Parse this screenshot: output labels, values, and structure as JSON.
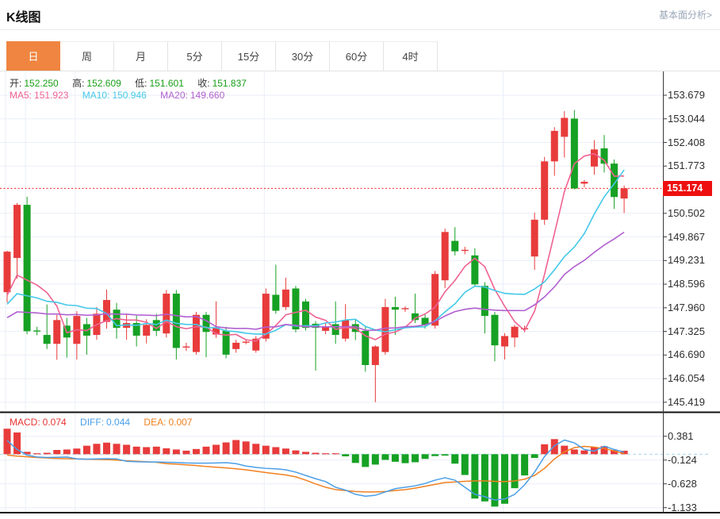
{
  "page": {
    "title": "K线图",
    "link_fundamental": "基本面分析>"
  },
  "tabs": {
    "selected_key": "day",
    "items": [
      {
        "key": "day",
        "label": "日"
      },
      {
        "key": "week",
        "label": "周"
      },
      {
        "key": "month",
        "label": "月"
      },
      {
        "key": "5min",
        "label": "5分"
      },
      {
        "key": "15min",
        "label": "15分"
      },
      {
        "key": "30min",
        "label": "30分"
      },
      {
        "key": "60min",
        "label": "60分"
      },
      {
        "key": "4hour",
        "label": "4时"
      }
    ]
  },
  "legend": {
    "open_label": "开:",
    "high_label": "高:",
    "low_label": "低:",
    "close_label": "收:",
    "ma5_label": "MA5:",
    "ma10_label": "MA10:",
    "ma20_label": "MA20:",
    "macd_label": "MACD:",
    "diff_label": "DIFF:",
    "dea_label": "DEA:"
  },
  "price_badge": "151.174",
  "colors": {
    "up": "#e83b3b",
    "down": "#16a124",
    "ma5": "#ef6292",
    "ma10": "#44c8e8",
    "ma20": "#b05fd0",
    "diff": "#4a9fe8",
    "dea": "#f08021",
    "value_green": "#18a018",
    "macd_value_red": "#e73434",
    "grid": "#eaeef7",
    "axis_line": "#3a3a3a",
    "current_line": "#f42020",
    "badge_bg": "#ee1010",
    "tab_active": "#ef8540",
    "link": "#9aa7b8",
    "zero_dash": "#a9d7f2",
    "separator": "#111111"
  },
  "chart_data": [
    {
      "type": "candlestick",
      "title": "K线图 日K",
      "legend_values": {
        "open": "152.250",
        "high": "152.609",
        "low": "151.601",
        "close": "151.837",
        "ma5": "151.923",
        "ma10": "150.946",
        "ma20": "149.660"
      },
      "y_axis": {
        "range": [
          145.419,
          153.679
        ],
        "current_price": 151.174,
        "ticks": [
          "153.679",
          "153.044",
          "152.408",
          "151.773",
          "150.502",
          "149.867",
          "149.231",
          "148.596",
          "147.960",
          "147.325",
          "146.690",
          "146.054",
          "145.419"
        ]
      },
      "ma_lines": [
        {
          "name": "MA5",
          "period": 5,
          "seed": 148.0
        },
        {
          "name": "MA10",
          "period": 10,
          "seed": 147.9
        },
        {
          "name": "MA20",
          "period": 20,
          "seed": 147.6
        }
      ],
      "vgrid_candle_indices": [
        0,
        2,
        7,
        26,
        50
      ],
      "candles_ohlc": [
        [
          148.38,
          149.5,
          148.1,
          149.47
        ],
        [
          149.3,
          150.78,
          148.74,
          150.73
        ],
        [
          150.73,
          150.95,
          147.25,
          147.33
        ],
        [
          147.35,
          147.45,
          147.22,
          147.33
        ],
        [
          147.23,
          148.05,
          146.85,
          146.99
        ],
        [
          146.99,
          147.77,
          146.56,
          147.63
        ],
        [
          147.48,
          147.69,
          146.62,
          147.16
        ],
        [
          146.99,
          147.87,
          146.57,
          147.74
        ],
        [
          147.52,
          147.69,
          146.7,
          147.21
        ],
        [
          147.23,
          147.98,
          147.1,
          147.8
        ],
        [
          147.58,
          148.45,
          147.4,
          148.17
        ],
        [
          147.91,
          148.09,
          147.13,
          147.42
        ],
        [
          147.42,
          147.8,
          147.1,
          147.55
        ],
        [
          147.55,
          147.75,
          146.92,
          147.21
        ],
        [
          147.21,
          147.65,
          147.0,
          147.5
        ],
        [
          147.63,
          147.8,
          147.2,
          147.34
        ],
        [
          147.27,
          148.44,
          147.16,
          148.34
        ],
        [
          148.34,
          148.44,
          146.57,
          146.88
        ],
        [
          146.9,
          147.02,
          146.8,
          146.92
        ],
        [
          146.77,
          147.85,
          146.7,
          147.77
        ],
        [
          147.77,
          147.85,
          146.63,
          147.31
        ],
        [
          147.24,
          148.13,
          147.15,
          147.42
        ],
        [
          147.34,
          147.45,
          146.6,
          146.7
        ],
        [
          146.85,
          147.1,
          146.75,
          147.02
        ],
        [
          147.03,
          147.1,
          146.98,
          147.05
        ],
        [
          146.81,
          147.2,
          146.75,
          147.13
        ],
        [
          147.13,
          148.48,
          147.05,
          148.34
        ],
        [
          148.31,
          149.12,
          147.8,
          147.88
        ],
        [
          147.98,
          148.77,
          147.9,
          148.45
        ],
        [
          148.48,
          148.55,
          147.3,
          147.38
        ],
        [
          148.13,
          148.2,
          147.35,
          147.42
        ],
        [
          147.53,
          147.6,
          146.27,
          147.42
        ],
        [
          147.34,
          147.55,
          147.25,
          147.45
        ],
        [
          147.52,
          148.13,
          146.99,
          147.23
        ],
        [
          147.13,
          148.06,
          147.05,
          147.63
        ],
        [
          147.52,
          147.65,
          147.09,
          147.31
        ],
        [
          147.34,
          147.45,
          146.24,
          146.42
        ],
        [
          146.42,
          146.95,
          145.42,
          146.92
        ],
        [
          146.77,
          148.2,
          146.7,
          147.98
        ],
        [
          147.98,
          148.26,
          147.23,
          147.91
        ],
        [
          147.93,
          148.0,
          147.85,
          147.95
        ],
        [
          147.81,
          148.34,
          147.55,
          147.63
        ],
        [
          147.69,
          147.8,
          147.4,
          147.5
        ],
        [
          147.48,
          148.95,
          147.4,
          148.87
        ],
        [
          148.7,
          150.09,
          148.49,
          150.0
        ],
        [
          149.76,
          150.13,
          149.37,
          149.48
        ],
        [
          149.5,
          149.6,
          149.4,
          149.52
        ],
        [
          149.37,
          149.56,
          148.52,
          148.59
        ],
        [
          148.55,
          148.65,
          147.27,
          147.74
        ],
        [
          147.77,
          147.85,
          146.52,
          146.95
        ],
        [
          146.92,
          147.28,
          146.57,
          147.2
        ],
        [
          147.16,
          147.5,
          146.9,
          147.45
        ],
        [
          147.38,
          147.48,
          147.3,
          147.41
        ],
        [
          149.34,
          150.52,
          148.98,
          150.33
        ],
        [
          150.33,
          152.02,
          150.19,
          151.9
        ],
        [
          151.9,
          152.82,
          151.51,
          152.72
        ],
        [
          152.56,
          153.25,
          152.0,
          153.07
        ],
        [
          153.05,
          153.28,
          151.15,
          151.17
        ],
        [
          151.3,
          151.4,
          151.2,
          151.35
        ],
        [
          151.76,
          152.47,
          151.54,
          152.22
        ],
        [
          152.25,
          152.609,
          151.601,
          151.837
        ],
        [
          151.84,
          151.95,
          150.62,
          150.94
        ],
        [
          150.9,
          151.25,
          150.51,
          151.174
        ]
      ]
    },
    {
      "type": "bar+line",
      "title": "MACD",
      "legend_values": {
        "macd": "0.074",
        "diff": "0.044",
        "dea": "0.007"
      },
      "y_axis": {
        "ticks": [
          "0.381",
          "-0.124",
          "-0.628",
          "-1.133"
        ]
      },
      "hist": [
        0.54,
        0.46,
        0.05,
        0.02,
        0.03,
        0.09,
        0.1,
        0.12,
        0.18,
        0.22,
        0.245,
        0.22,
        0.2,
        0.16,
        0.15,
        0.16,
        0.125,
        0.1,
        0.075,
        0.11,
        0.16,
        0.2,
        0.25,
        0.3,
        0.27,
        0.22,
        0.18,
        0.15,
        0.12,
        0.08,
        0.05,
        0.03,
        0.02,
        0.02,
        -0.045,
        -0.185,
        -0.27,
        -0.22,
        -0.12,
        -0.16,
        -0.19,
        -0.17,
        -0.1,
        -0.04,
        -0.03,
        -0.2,
        -0.44,
        -0.94,
        -1.0,
        -1.11,
        -1.05,
        -0.72,
        -0.45,
        -0.08,
        0.21,
        0.32,
        0.18,
        0.1,
        0.08,
        0.15,
        0.17,
        0.09,
        0.074
      ],
      "diff": [
        0.29,
        0.1,
        -0.02,
        -0.06,
        -0.07,
        -0.065,
        -0.06,
        -0.1,
        -0.105,
        -0.1,
        -0.095,
        -0.1,
        -0.15,
        -0.16,
        -0.165,
        -0.165,
        -0.17,
        -0.175,
        -0.185,
        -0.19,
        -0.19,
        -0.185,
        -0.18,
        -0.2,
        -0.25,
        -0.28,
        -0.3,
        -0.31,
        -0.33,
        -0.38,
        -0.45,
        -0.52,
        -0.58,
        -0.7,
        -0.76,
        -0.85,
        -0.89,
        -0.87,
        -0.8,
        -0.73,
        -0.7,
        -0.67,
        -0.62,
        -0.55,
        -0.5,
        -0.55,
        -0.7,
        -0.85,
        -0.9,
        -0.97,
        -0.95,
        -0.85,
        -0.65,
        -0.38,
        -0.05,
        0.18,
        0.3,
        0.24,
        0.1,
        0.065,
        0.17,
        0.1,
        0.044
      ],
      "dea": [
        -0.02,
        -0.04,
        -0.055,
        -0.07,
        -0.08,
        -0.09,
        -0.095,
        -0.1,
        -0.105,
        -0.11,
        -0.115,
        -0.125,
        -0.14,
        -0.15,
        -0.16,
        -0.17,
        -0.2,
        -0.21,
        -0.225,
        -0.24,
        -0.26,
        -0.275,
        -0.29,
        -0.31,
        -0.33,
        -0.36,
        -0.39,
        -0.415,
        -0.44,
        -0.48,
        -0.55,
        -0.63,
        -0.7,
        -0.75,
        -0.77,
        -0.79,
        -0.8,
        -0.8,
        -0.79,
        -0.77,
        -0.75,
        -0.72,
        -0.68,
        -0.64,
        -0.6,
        -0.59,
        -0.575,
        -0.565,
        -0.565,
        -0.575,
        -0.58,
        -0.565,
        -0.53,
        -0.45,
        -0.3,
        -0.1,
        0.05,
        0.14,
        0.165,
        0.15,
        0.12,
        0.07,
        0.007
      ]
    }
  ]
}
